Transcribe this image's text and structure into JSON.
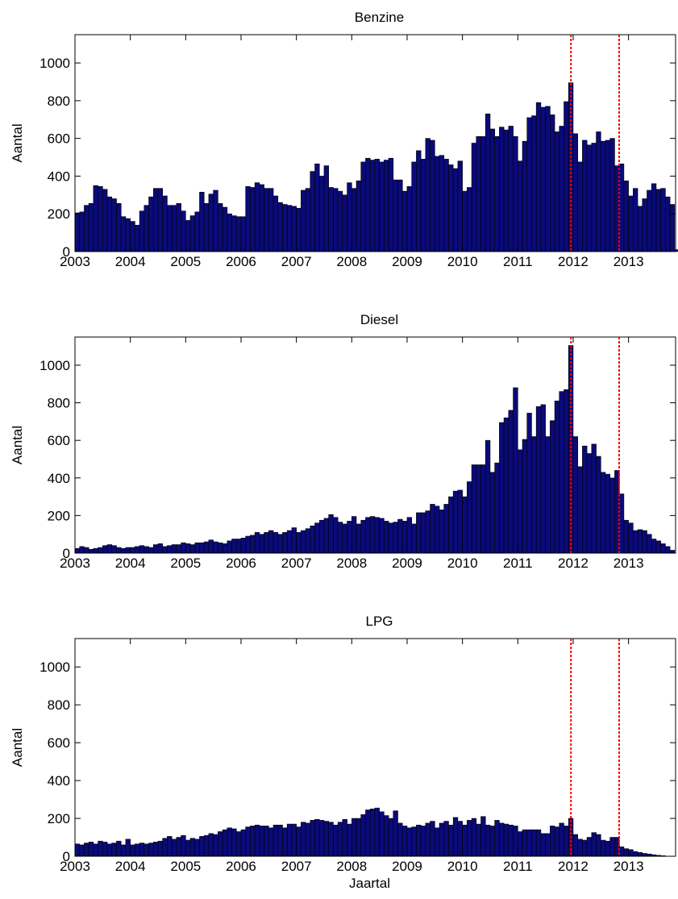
{
  "chart_data": [
    {
      "type": "bar",
      "title": "Benzine",
      "xlabel": "",
      "ylabel": "Aantal",
      "ylim": [
        0,
        1150
      ],
      "xlim": [
        2003,
        2013.85
      ],
      "yticks": [
        0,
        200,
        400,
        600,
        800,
        1000
      ],
      "xticks": [
        2003,
        2004,
        2005,
        2006,
        2007,
        2008,
        2009,
        2010,
        2011,
        2012,
        2013
      ],
      "x_start": 2003.0,
      "bar_step": 0.08333,
      "bar_color": "#0a0a78",
      "reference_lines": [
        2011.96,
        2012.83
      ],
      "reference_line_color": "#ff0000",
      "grid": false,
      "values": [
        205,
        210,
        245,
        255,
        350,
        345,
        330,
        290,
        280,
        255,
        185,
        175,
        160,
        140,
        215,
        245,
        290,
        335,
        335,
        295,
        245,
        245,
        255,
        215,
        165,
        190,
        210,
        315,
        255,
        305,
        325,
        255,
        235,
        200,
        190,
        185,
        185,
        345,
        340,
        365,
        355,
        335,
        335,
        295,
        260,
        250,
        245,
        240,
        230,
        325,
        335,
        425,
        465,
        400,
        455,
        340,
        335,
        320,
        300,
        365,
        335,
        375,
        475,
        495,
        485,
        490,
        475,
        485,
        495,
        380,
        380,
        320,
        345,
        475,
        535,
        490,
        600,
        590,
        505,
        510,
        490,
        460,
        440,
        480,
        320,
        340,
        575,
        610,
        610,
        730,
        650,
        610,
        660,
        645,
        665,
        610,
        480,
        585,
        710,
        720,
        790,
        765,
        770,
        725,
        635,
        665,
        795,
        895,
        625,
        475,
        590,
        565,
        575,
        635,
        585,
        590,
        600,
        455,
        465,
        375,
        295,
        335,
        240,
        280,
        325,
        360,
        330,
        335,
        290,
        250,
        10
      ]
    },
    {
      "type": "bar",
      "title": "Diesel",
      "xlabel": "",
      "ylabel": "Aantal",
      "ylim": [
        0,
        1150
      ],
      "xlim": [
        2003,
        2013.85
      ],
      "yticks": [
        0,
        200,
        400,
        600,
        800,
        1000
      ],
      "xticks": [
        2003,
        2004,
        2005,
        2006,
        2007,
        2008,
        2009,
        2010,
        2011,
        2012,
        2013
      ],
      "x_start": 2003.0,
      "bar_step": 0.08333,
      "bar_color": "#0a0a78",
      "reference_lines": [
        2011.96,
        2012.83
      ],
      "reference_line_color": "#ff0000",
      "grid": false,
      "values": [
        25,
        35,
        30,
        20,
        25,
        30,
        40,
        45,
        40,
        30,
        25,
        30,
        30,
        35,
        40,
        35,
        30,
        45,
        50,
        35,
        40,
        45,
        45,
        55,
        50,
        45,
        55,
        55,
        60,
        70,
        60,
        55,
        50,
        65,
        75,
        75,
        80,
        90,
        95,
        110,
        100,
        110,
        120,
        110,
        100,
        110,
        120,
        135,
        110,
        120,
        130,
        145,
        160,
        175,
        185,
        205,
        190,
        165,
        155,
        170,
        195,
        155,
        175,
        190,
        195,
        190,
        185,
        170,
        160,
        165,
        180,
        170,
        190,
        155,
        215,
        215,
        225,
        260,
        250,
        230,
        260,
        300,
        330,
        335,
        300,
        380,
        470,
        470,
        470,
        600,
        430,
        480,
        695,
        720,
        760,
        880,
        550,
        605,
        745,
        620,
        780,
        790,
        620,
        705,
        810,
        860,
        870,
        1105,
        620,
        460,
        570,
        530,
        580,
        515,
        430,
        420,
        400,
        440,
        315,
        175,
        160,
        120,
        125,
        120,
        100,
        75,
        65,
        50,
        35,
        15
      ]
    },
    {
      "type": "bar",
      "title": "LPG",
      "xlabel": "Jaartal",
      "ylabel": "Aantal",
      "ylim": [
        0,
        1150
      ],
      "xlim": [
        2003,
        2013.85
      ],
      "yticks": [
        0,
        200,
        400,
        600,
        800,
        1000
      ],
      "xticks": [
        2003,
        2004,
        2005,
        2006,
        2007,
        2008,
        2009,
        2010,
        2011,
        2012,
        2013
      ],
      "x_start": 2003.0,
      "bar_step": 0.08333,
      "bar_color": "#0a0a78",
      "reference_lines": [
        2011.96,
        2012.83
      ],
      "reference_line_color": "#ff0000",
      "grid": false,
      "values": [
        65,
        60,
        70,
        75,
        65,
        80,
        75,
        65,
        70,
        80,
        60,
        90,
        60,
        65,
        70,
        65,
        70,
        75,
        80,
        95,
        105,
        90,
        100,
        110,
        85,
        95,
        90,
        105,
        110,
        120,
        115,
        130,
        140,
        150,
        145,
        130,
        140,
        155,
        160,
        165,
        160,
        160,
        150,
        165,
        165,
        150,
        170,
        170,
        155,
        180,
        175,
        190,
        195,
        190,
        185,
        180,
        165,
        180,
        195,
        170,
        200,
        200,
        220,
        245,
        250,
        255,
        235,
        215,
        200,
        240,
        175,
        160,
        150,
        155,
        165,
        160,
        175,
        185,
        150,
        175,
        185,
        165,
        205,
        185,
        165,
        190,
        200,
        170,
        210,
        165,
        160,
        190,
        175,
        170,
        165,
        160,
        130,
        140,
        140,
        140,
        140,
        120,
        120,
        160,
        155,
        175,
        160,
        200,
        115,
        90,
        85,
        100,
        125,
        115,
        85,
        80,
        100,
        100,
        50,
        40,
        35,
        25,
        20,
        15,
        12,
        8,
        5,
        3
      ]
    }
  ]
}
